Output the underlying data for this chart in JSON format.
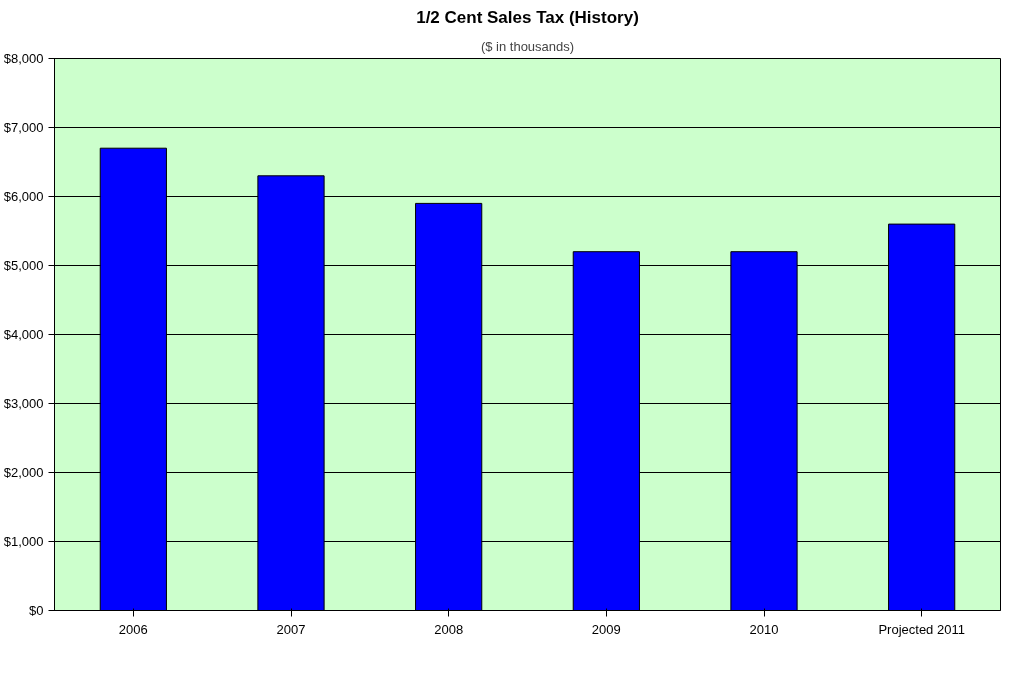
{
  "chart_data": {
    "type": "bar",
    "title": "1/2 Cent Sales Tax (History)",
    "subtitle": "($ in thousands)",
    "categories": [
      "2006",
      "2007",
      "2008",
      "2009",
      "2010",
      "Projected 2011"
    ],
    "values": [
      6700,
      6300,
      5900,
      5200,
      5200,
      5600
    ],
    "color": "#0000ff",
    "ylim": [
      0,
      8000
    ],
    "yticks": [
      {
        "value": 0,
        "label": "$0"
      },
      {
        "value": 1000,
        "label": "$1,000"
      },
      {
        "value": 2000,
        "label": "$2,000"
      },
      {
        "value": 3000,
        "label": "$3,000"
      },
      {
        "value": 4000,
        "label": "$4,000"
      },
      {
        "value": 5000,
        "label": "$5,000"
      },
      {
        "value": 6000,
        "label": "$6,000"
      },
      {
        "value": 7000,
        "label": "$7,000"
      },
      {
        "value": 8000,
        "label": "$8,000"
      }
    ],
    "grid": "y"
  }
}
